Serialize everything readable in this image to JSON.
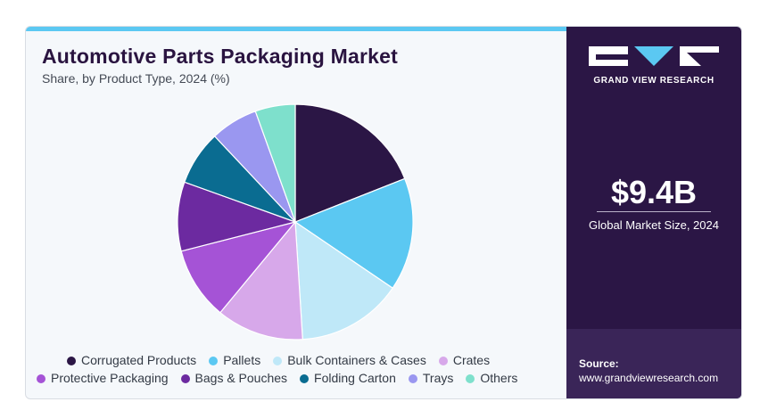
{
  "title": "Automotive Parts Packaging Market",
  "subtitle": "Share, by Product Type, 2024 (%)",
  "brand": {
    "name": "GRAND VIEW RESEARCH",
    "colors": {
      "panel": "#2b1645",
      "accent": "#5bc8f2"
    }
  },
  "market": {
    "value": "$9.4B",
    "label": "Global Market Size, 2024"
  },
  "source": {
    "label": "Source:",
    "url": "www.grandviewresearch.com"
  },
  "chart_data": {
    "type": "pie",
    "title": "Automotive Parts Packaging Market",
    "subtitle": "Share, by Product Type, 2024 (%)",
    "legend_position": "bottom",
    "slices": [
      {
        "label": "Corrugated Products",
        "value": 19.0,
        "color": "#2b1645"
      },
      {
        "label": "Pallets",
        "value": 15.5,
        "color": "#5bc8f2"
      },
      {
        "label": "Bulk Containers & Cases",
        "value": 14.5,
        "color": "#bfe8f8"
      },
      {
        "label": "Crates",
        "value": 12.0,
        "color": "#d7a8ea"
      },
      {
        "label": "Protective Packaging",
        "value": 10.0,
        "color": "#a553d6"
      },
      {
        "label": "Bags & Pouches",
        "value": 9.5,
        "color": "#6c2aa0"
      },
      {
        "label": "Folding Carton",
        "value": 7.5,
        "color": "#0a6c91"
      },
      {
        "label": "Trays",
        "value": 6.5,
        "color": "#9a97f0"
      },
      {
        "label": "Others",
        "value": 5.5,
        "color": "#7ee0cc"
      }
    ]
  }
}
